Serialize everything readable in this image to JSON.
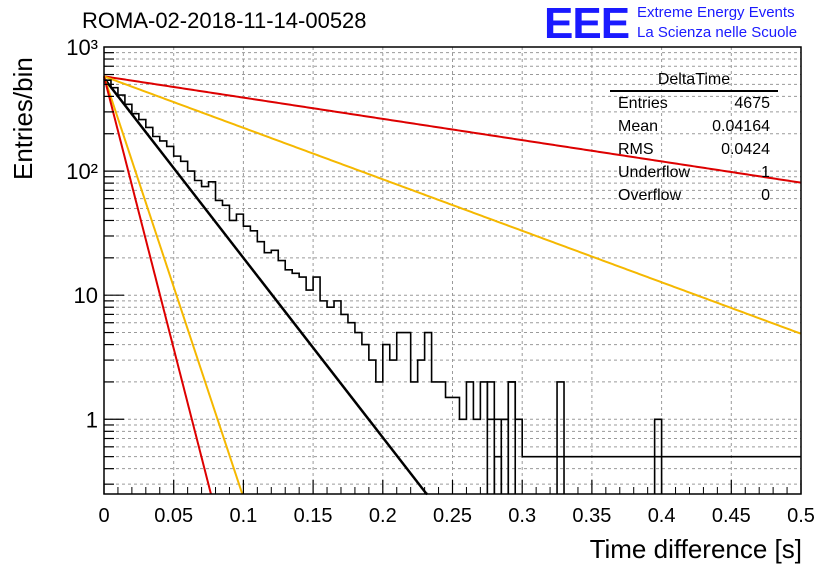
{
  "chart_data": {
    "type": "histogram",
    "title": "ROMA-02-2018-11-14-00528",
    "xlabel": "Time difference [s]",
    "ylabel": "Entries/bin",
    "xlim": [
      0,
      0.5
    ],
    "ylim": [
      0.25,
      1000
    ],
    "y_scale": "log",
    "grid": true,
    "x_ticks": [
      "0",
      "0.05",
      "0.1",
      "0.15",
      "0.2",
      "0.25",
      "0.3",
      "0.35",
      "0.4",
      "0.45",
      "0.5"
    ],
    "x_tick_values": [
      0,
      0.05,
      0.1,
      0.15,
      0.2,
      0.25,
      0.3,
      0.35,
      0.4,
      0.45,
      0.5
    ],
    "y_ticks": [
      "1",
      "10",
      "10²",
      "10³"
    ],
    "y_tick_values": [
      1,
      10,
      100,
      1000
    ],
    "bin_width": 0.005,
    "bins_start": 0,
    "histogram": [
      540,
      470,
      410,
      345,
      290,
      260,
      225,
      190,
      175,
      158,
      132,
      120,
      100,
      84,
      75,
      82,
      58,
      53,
      40,
      45,
      36,
      33,
      27,
      22,
      23,
      19,
      16,
      15,
      14,
      11,
      14,
      9,
      8,
      9,
      7,
      6,
      5,
      4,
      3,
      2,
      4,
      3,
      5,
      5,
      2,
      3,
      5,
      2,
      2,
      1.5,
      1.5,
      1,
      2,
      1,
      2,
      1,
      1,
      1,
      2,
      1,
      0.5,
      0.5,
      0.5,
      0.5,
      0.5,
      0.5,
      0.5,
      0.5,
      0.5,
      0.5,
      0.5,
      0.5,
      0.5,
      0.5,
      0.5,
      0.5,
      0.5,
      0.5,
      0.5,
      0.5,
      0.5,
      0.5,
      0.5,
      0.5,
      0.5,
      0.5,
      0.5,
      0.5,
      0.5,
      0.5,
      0.5,
      0.5,
      0.5,
      0.5,
      0.5,
      0.5,
      0.5,
      0.5,
      0.5,
      0.5
    ],
    "histogram_spikes": [
      {
        "x": 0.275,
        "value": 2
      },
      {
        "x": 0.28,
        "value": 0.5
      },
      {
        "x": 0.285,
        "value": 1
      },
      {
        "x": 0.29,
        "value": 2
      },
      {
        "x": 0.325,
        "value": 2
      },
      {
        "x": 0.395,
        "value": 1
      }
    ],
    "fits": [
      {
        "color": "#000000",
        "A": 560,
        "tau": 0.03,
        "x_range": [
          0,
          0.32
        ]
      },
      {
        "color": "#dd0000",
        "A": 580,
        "tau": 0.2535,
        "x_range": [
          0,
          0.5
        ]
      },
      {
        "color": "#f5b800",
        "A": 580,
        "tau": 0.1047,
        "x_range": [
          0,
          0.5
        ]
      },
      {
        "color": "#f5b800",
        "A": 580,
        "tau": 0.0128,
        "x_range": [
          0,
          0.1
        ]
      },
      {
        "color": "#dd0000",
        "A": 580,
        "tau": 0.0099,
        "x_range": [
          0,
          0.1
        ]
      }
    ]
  },
  "logo": {
    "mark": "EEE",
    "line1": "Extreme Energy Events",
    "line2": "La Scienza nelle Scuole"
  },
  "stats": {
    "title": "DeltaTime",
    "rows": [
      {
        "label": "Entries",
        "value": "4675"
      },
      {
        "label": "Mean",
        "value": "0.04164"
      },
      {
        "label": "RMS",
        "value": "0.0424"
      },
      {
        "label": "Underflow",
        "value": "1"
      },
      {
        "label": "Overflow",
        "value": "0"
      }
    ]
  }
}
